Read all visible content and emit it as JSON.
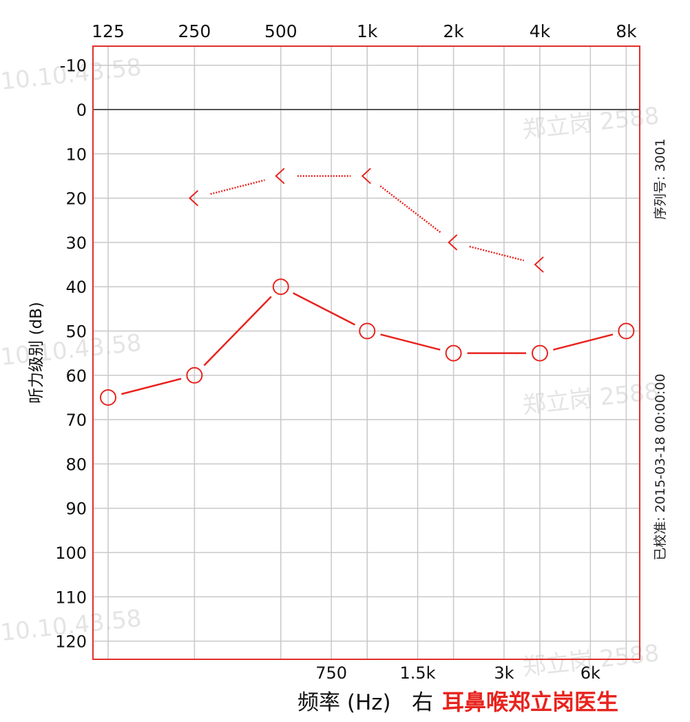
{
  "chart_data": {
    "type": "line",
    "x_scale": "log2",
    "x_top_ticks": [
      "125",
      "250",
      "500",
      "1k",
      "2k",
      "4k",
      "8k"
    ],
    "x_top_values": [
      125,
      250,
      500,
      1000,
      2000,
      4000,
      8000
    ],
    "x_bottom_ticks": [
      "750",
      "1.5k",
      "3k",
      "6k"
    ],
    "x_bottom_values": [
      750,
      1500,
      3000,
      6000
    ],
    "xlabel": "频率 (Hz)",
    "xlabel_suffix": "右",
    "ylabel": "听力级别 (dB)",
    "y_ticks": [
      -10,
      0,
      10,
      20,
      30,
      40,
      50,
      60,
      70,
      80,
      90,
      100,
      110,
      120
    ],
    "ylim": [
      -15,
      125
    ],
    "y_inverted": true,
    "grid": true,
    "series": [
      {
        "marker": "circle",
        "line_style": "solid",
        "color": "#e8231e",
        "x": [
          125,
          250,
          500,
          1000,
          2000,
          4000,
          8000
        ],
        "y": [
          65,
          60,
          40,
          50,
          55,
          55,
          50
        ]
      },
      {
        "marker": "angle-left",
        "line_style": "dotted",
        "color": "#e8231e",
        "x": [
          250,
          500,
          1000,
          2000,
          4000
        ],
        "y": [
          20,
          15,
          15,
          30,
          35
        ]
      }
    ],
    "serial_label": "序列号: 3001",
    "calibration_label": "已校准: 2015-03-18 00:00:00"
  },
  "brand_text": "耳鼻喉郑立岗医生",
  "watermarks": [
    "10.10.43.58",
    "10.10.43.58",
    "10.10.43.58",
    "郑立岗 2588",
    "郑立岗 2588",
    "郑立岗 2588"
  ],
  "colors": {
    "frame": "#e03028",
    "grid": "#c8c8c8",
    "zero_line": "#555555",
    "series": "#e8231e"
  }
}
